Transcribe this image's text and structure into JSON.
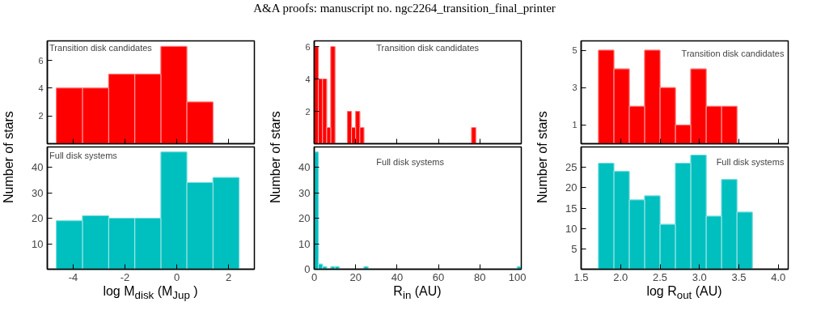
{
  "chart_data": [
    {
      "type": "other",
      "title": "A&A proofs: manuscript no. ngc2264_transition_final_printer"
    },
    {
      "type": "histogram",
      "bins": [
        -4.65,
        -3.64,
        -2.63,
        -1.62,
        -0.61,
        0.39,
        1.4,
        2.41
      ],
      "values": [
        4,
        4,
        5,
        5,
        7,
        3,
        0
      ],
      "color": "#ff0000",
      "xlim": [
        -5,
        3
      ],
      "xticks": [
        -4,
        -2,
        0,
        2
      ],
      "ylim": [
        0,
        7.4
      ],
      "yticks": [
        2,
        4,
        6
      ],
      "tick_labels": "y",
      "ylabel": "Number of stars",
      "annotations": [
        "Transition disk candidates"
      ],
      "grid": false
    },
    {
      "type": "histogram",
      "bins": [
        0,
        2,
        4,
        6,
        8,
        10,
        12,
        14,
        16,
        18,
        20,
        22,
        24,
        26,
        28,
        30,
        32,
        34,
        36,
        38,
        40,
        42,
        44,
        46,
        48,
        50,
        52,
        54,
        56,
        58,
        60,
        62,
        64,
        66,
        68,
        70,
        72,
        74,
        76,
        78,
        80,
        82,
        84,
        86,
        88,
        90,
        92,
        94,
        96,
        98,
        100
      ],
      "values": [
        6,
        4,
        4,
        1,
        6,
        0,
        0,
        0,
        2,
        1,
        2,
        1,
        0,
        0,
        0,
        0,
        0,
        0,
        0,
        0,
        0,
        0,
        0,
        0,
        0,
        0,
        0,
        0,
        0,
        0,
        0,
        0,
        0,
        0,
        0,
        0,
        0,
        0,
        1,
        0,
        0,
        0,
        0,
        0,
        0,
        0,
        0,
        0,
        0,
        0
      ],
      "color": "#ff0000",
      "xlim": [
        0,
        100
      ],
      "xticks": [
        0,
        20,
        40,
        60,
        80,
        100
      ],
      "ylim": [
        0,
        6.35
      ],
      "yticks": [
        2,
        4,
        6
      ],
      "tick_labels": "y",
      "ylabel": "Number of stars",
      "annotations": [
        "Transition disk candidates"
      ],
      "grid": false
    },
    {
      "type": "histogram",
      "bins": [
        1.72,
        1.915,
        2.11,
        2.305,
        2.5,
        2.695,
        2.89,
        3.085,
        3.28,
        3.475,
        3.67
      ],
      "values": [
        5,
        4,
        2,
        5,
        3,
        1,
        4,
        2,
        2,
        0
      ],
      "color": "#ff0000",
      "xlim": [
        1.5,
        4.125
      ],
      "xticks": [
        1.5,
        2,
        2.5,
        3,
        3.5,
        4
      ],
      "ylim": [
        0,
        5.5
      ],
      "yticks": [
        1,
        3,
        5
      ],
      "tick_labels": "y",
      "ylabel": "Number of stars",
      "annotations": [
        "Transition disk candidates"
      ],
      "grid": false
    },
    {
      "type": "histogram",
      "bins": [
        -4.65,
        -3.64,
        -2.63,
        -1.62,
        -0.61,
        0.39,
        1.4,
        2.41
      ],
      "values": [
        19,
        21,
        20,
        20,
        46,
        34,
        36
      ],
      "color": "#00bfbf",
      "xlim": [
        -5,
        3
      ],
      "xticks": [
        -4,
        -2,
        0,
        2
      ],
      "ylim": [
        0,
        48
      ],
      "yticks": [
        10,
        20,
        30,
        40
      ],
      "xlabel": "log M$_{disk}$ (M$_{Jup}$ )",
      "annotations": [
        "Full disk systems"
      ],
      "grid": false
    },
    {
      "type": "histogram",
      "bins": [
        0,
        2,
        4,
        6,
        8,
        10,
        12,
        14,
        16,
        18,
        20,
        22,
        24,
        26,
        28,
        30,
        32,
        34,
        36,
        38,
        40,
        42,
        44,
        46,
        48,
        50,
        52,
        54,
        56,
        58,
        60,
        62,
        64,
        66,
        68,
        70,
        72,
        74,
        76,
        78,
        80,
        82,
        84,
        86,
        88,
        90,
        92,
        94,
        96,
        98,
        100
      ],
      "values": [
        46,
        2,
        1,
        0,
        1,
        1,
        0,
        0,
        0,
        0,
        0,
        0,
        1,
        0,
        0,
        0,
        0,
        0,
        0,
        0,
        0,
        0,
        0,
        0,
        0,
        0,
        0,
        0,
        0,
        0,
        0,
        0,
        0,
        0,
        0,
        0,
        0,
        0,
        0,
        0,
        0,
        0,
        0,
        0,
        0,
        0,
        0,
        0,
        0,
        1
      ],
      "color": "#00bfbf",
      "xlim": [
        0,
        100
      ],
      "xticks": [
        0,
        20,
        40,
        60,
        80,
        100
      ],
      "ylim": [
        0,
        48
      ],
      "yticks": [
        0,
        10,
        20,
        30,
        40
      ],
      "xlabel": "R$_{in}$ (AU)",
      "annotations": [
        "Full disk systems"
      ],
      "grid": false
    },
    {
      "type": "histogram",
      "bins": [
        1.72,
        1.915,
        2.11,
        2.305,
        2.5,
        2.695,
        2.89,
        3.085,
        3.28,
        3.475,
        3.67
      ],
      "values": [
        26,
        24,
        17,
        18,
        11,
        26,
        28,
        13,
        22,
        14
      ],
      "color": "#00bfbf",
      "xlim": [
        1.5,
        4.125
      ],
      "xticks": [
        1.5,
        {
          "value": 2,
          "label": "2.0"
        },
        2.5,
        {
          "value": 3,
          "label": "3.0"
        },
        3.5,
        {
          "value": 4,
          "label": "4.0"
        }
      ],
      "ylim": [
        0,
        30
      ],
      "yticks": [
        5,
        10,
        15,
        20,
        25
      ],
      "xlabel": "log R$_{out}$ (AU)",
      "annotations": [
        "Full disk systems"
      ],
      "grid": false
    }
  ]
}
